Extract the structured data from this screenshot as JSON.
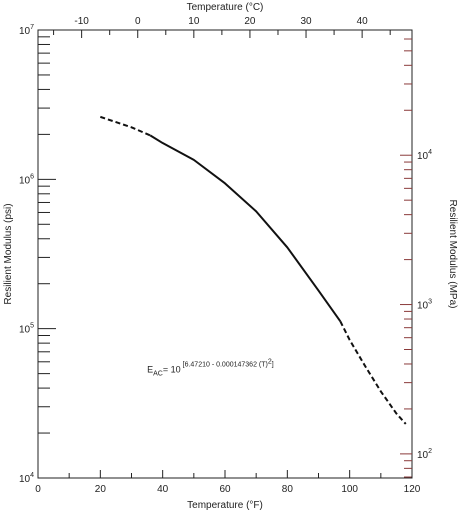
{
  "chart_data": {
    "type": "line",
    "x_axis_bottom": {
      "label": "Temperature (°F)",
      "range": [
        0,
        120
      ],
      "ticks": [
        0,
        20,
        40,
        60,
        80,
        100,
        120
      ]
    },
    "x_axis_top": {
      "label": "Temperature (°C)",
      "ticks": [
        -10,
        0,
        10,
        20,
        30,
        40
      ]
    },
    "y_axis_left": {
      "label": "Resilient Modulus (psi)",
      "scale": "log",
      "range": [
        10000,
        10000000
      ],
      "ticks": [
        {
          "value": 10000,
          "base": "10",
          "exp": "4"
        },
        {
          "value": 100000,
          "base": "10",
          "exp": "5"
        },
        {
          "value": 1000000,
          "base": "10",
          "exp": "6"
        },
        {
          "value": 10000000,
          "base": "10",
          "exp": "7"
        }
      ]
    },
    "y_axis_right": {
      "label": "Resilient Modulus (MPa)",
      "scale": "log",
      "ticks": [
        {
          "value": 100,
          "base": "10",
          "exp": "2"
        },
        {
          "value": 1000,
          "base": "10",
          "exp": "3"
        },
        {
          "value": 10000,
          "base": "10",
          "exp": "4"
        }
      ]
    },
    "series": [
      {
        "style": "dashed",
        "x": [
          20,
          30,
          36
        ],
        "y": [
          2620000,
          2230000,
          1970000
        ]
      },
      {
        "style": "solid",
        "x": [
          36,
          40,
          50,
          60,
          70,
          80,
          90,
          97
        ],
        "y": [
          1970000,
          1750000,
          1350000,
          940000,
          610000,
          350000,
          180000,
          112000
        ]
      },
      {
        "style": "dashed",
        "x": [
          97,
          100,
          105,
          110,
          115,
          118
        ],
        "y": [
          112000,
          84000,
          56000,
          38000,
          27000,
          23000
        ]
      }
    ],
    "annotation": {
      "main": "E",
      "subscript": "AC",
      "equals": "= 10",
      "exponent": "[6.47210 - 0.000147362 (T)",
      "exponent_power": "2",
      "exponent_close": "]",
      "position": [
        35,
        51000
      ]
    },
    "grid": false,
    "legend": "none"
  }
}
